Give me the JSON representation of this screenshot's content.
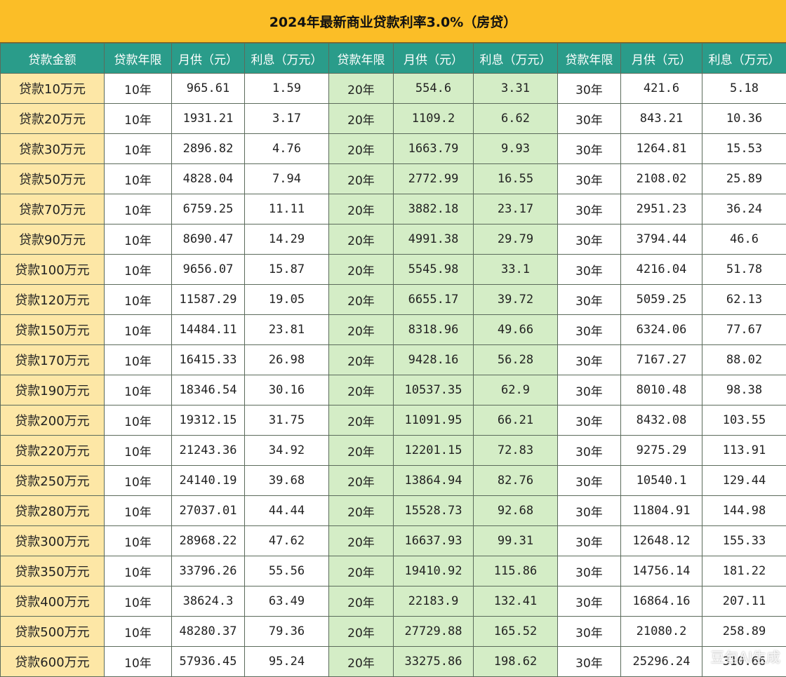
{
  "title": "2024年最新商业贷款利率3.0%（房贷）",
  "headers": [
    "贷款金额",
    "贷款年限",
    "月供（元）",
    "利息（万元）",
    "贷款年限",
    "月供（元）",
    "利息（万元）",
    "贷款年限",
    "月供（元）",
    "利息（万元）"
  ],
  "rows": [
    [
      "贷款10万元",
      "10年",
      "965.61",
      "1.59",
      "20年",
      "554.6",
      "3.31",
      "30年",
      "421.6",
      "5.18"
    ],
    [
      "贷款20万元",
      "10年",
      "1931.21",
      "3.17",
      "20年",
      "1109.2",
      "6.62",
      "30年",
      "843.21",
      "10.36"
    ],
    [
      "贷款30万元",
      "10年",
      "2896.82",
      "4.76",
      "20年",
      "1663.79",
      "9.93",
      "30年",
      "1264.81",
      "15.53"
    ],
    [
      "贷款50万元",
      "10年",
      "4828.04",
      "7.94",
      "20年",
      "2772.99",
      "16.55",
      "30年",
      "2108.02",
      "25.89"
    ],
    [
      "贷款70万元",
      "10年",
      "6759.25",
      "11.11",
      "20年",
      "3882.18",
      "23.17",
      "30年",
      "2951.23",
      "36.24"
    ],
    [
      "贷款90万元",
      "10年",
      "8690.47",
      "14.29",
      "20年",
      "4991.38",
      "29.79",
      "30年",
      "3794.44",
      "46.6"
    ],
    [
      "贷款100万元",
      "10年",
      "9656.07",
      "15.87",
      "20年",
      "5545.98",
      "33.1",
      "30年",
      "4216.04",
      "51.78"
    ],
    [
      "贷款120万元",
      "10年",
      "11587.29",
      "19.05",
      "20年",
      "6655.17",
      "39.72",
      "30年",
      "5059.25",
      "62.13"
    ],
    [
      "贷款150万元",
      "10年",
      "14484.11",
      "23.81",
      "20年",
      "8318.96",
      "49.66",
      "30年",
      "6324.06",
      "77.67"
    ],
    [
      "贷款170万元",
      "10年",
      "16415.33",
      "26.98",
      "20年",
      "9428.16",
      "56.28",
      "30年",
      "7167.27",
      "88.02"
    ],
    [
      "贷款190万元",
      "10年",
      "18346.54",
      "30.16",
      "20年",
      "10537.35",
      "62.9",
      "30年",
      "8010.48",
      "98.38"
    ],
    [
      "贷款200万元",
      "10年",
      "19312.15",
      "31.75",
      "20年",
      "11091.95",
      "66.21",
      "30年",
      "8432.08",
      "103.55"
    ],
    [
      "贷款220万元",
      "10年",
      "21243.36",
      "34.92",
      "20年",
      "12201.15",
      "72.83",
      "30年",
      "9275.29",
      "113.91"
    ],
    [
      "贷款250万元",
      "10年",
      "24140.19",
      "39.68",
      "20年",
      "13864.94",
      "82.76",
      "30年",
      "10540.1",
      "129.44"
    ],
    [
      "贷款280万元",
      "10年",
      "27037.01",
      "44.44",
      "20年",
      "15528.73",
      "92.68",
      "30年",
      "11804.91",
      "144.98"
    ],
    [
      "贷款300万元",
      "10年",
      "28968.22",
      "47.62",
      "20年",
      "16637.93",
      "99.31",
      "30年",
      "12648.12",
      "155.33"
    ],
    [
      "贷款350万元",
      "10年",
      "33796.26",
      "55.56",
      "20年",
      "19410.92",
      "115.86",
      "30年",
      "14756.14",
      "181.22"
    ],
    [
      "贷款400万元",
      "10年",
      "38624.3",
      "63.49",
      "20年",
      "22183.9",
      "132.41",
      "30年",
      "16864.16",
      "207.11"
    ],
    [
      "贷款500万元",
      "10年",
      "48280.37",
      "79.36",
      "20年",
      "27729.88",
      "165.52",
      "30年",
      "21080.2",
      "258.89"
    ],
    [
      "贷款600万元",
      "10年",
      "57936.45",
      "95.24",
      "20年",
      "33275.86",
      "198.62",
      "30年",
      "25296.24",
      "310.66"
    ]
  ],
  "watermark": "豆包AI生成",
  "colors": {
    "title_bg": "#fbbe27",
    "header_bg": "#2a9c8a",
    "amount_bg": "#fde7a6",
    "term20_bg": "#d4edc6"
  }
}
